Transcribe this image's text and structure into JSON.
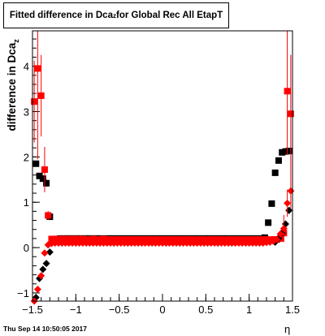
{
  "title": {
    "main": "Fitted difference in Dca",
    "sub": "z",
    "rest": " for Global Rec All EtapT"
  },
  "timestamp": "Thu Sep 14 10:50:05 2017",
  "chart_data": {
    "type": "scatter",
    "title": "Fitted difference in Dcaz for Global Rec All EtapT",
    "xlabel": "η",
    "ylabel": "difference in Dcaz",
    "xlim": [
      -1.5,
      1.5
    ],
    "ylim": [
      -1.18,
      4.78
    ],
    "xticks": [
      -1.5,
      -1,
      -0.5,
      0,
      0.5,
      1,
      1.5
    ],
    "xtick_labels": [
      "−1.5",
      "−1",
      "−0.5",
      "0",
      "0.5",
      "1",
      "1.5"
    ],
    "yticks": [
      -1,
      0,
      1,
      2,
      3,
      4
    ],
    "ytick_labels": [
      "−1",
      "0",
      "1",
      "2",
      "3",
      "4"
    ],
    "grid": false,
    "series": [
      {
        "marker": "square",
        "color": "#000000",
        "x": [
          -1.46,
          -1.42,
          -1.38,
          -1.34,
          -1.3,
          -1.26,
          -1.22,
          -1.18,
          -1.14,
          -1.1,
          -1.06,
          -1.02,
          -0.98,
          -0.94,
          -0.9,
          -0.86,
          -0.82,
          -0.78,
          -0.74,
          -0.7,
          -0.66,
          -0.62,
          -0.58,
          -0.54,
          -0.5,
          -0.46,
          -0.42,
          -0.38,
          -0.34,
          -0.3,
          -0.26,
          -0.22,
          -0.18,
          -0.14,
          -0.1,
          -0.06,
          -0.02,
          0.02,
          0.06,
          0.1,
          0.14,
          0.18,
          0.22,
          0.26,
          0.3,
          0.34,
          0.38,
          0.42,
          0.46,
          0.5,
          0.54,
          0.58,
          0.62,
          0.66,
          0.7,
          0.74,
          0.78,
          0.82,
          0.86,
          0.9,
          0.94,
          0.98,
          1.02,
          1.06,
          1.1,
          1.14,
          1.18,
          1.22,
          1.26,
          1.3,
          1.34,
          1.38,
          1.42,
          1.46
        ],
        "y": [
          1.85,
          1.58,
          1.52,
          1.42,
          0.68,
          0.18,
          0.19,
          0.2,
          0.2,
          0.2,
          0.2,
          0.2,
          0.2,
          0.2,
          0.2,
          0.2,
          0.2,
          0.2,
          0.2,
          0.2,
          0.2,
          0.2,
          0.2,
          0.2,
          0.2,
          0.2,
          0.2,
          0.2,
          0.2,
          0.2,
          0.2,
          0.2,
          0.2,
          0.2,
          0.2,
          0.2,
          0.2,
          0.2,
          0.2,
          0.2,
          0.2,
          0.2,
          0.2,
          0.2,
          0.2,
          0.2,
          0.2,
          0.2,
          0.2,
          0.2,
          0.2,
          0.2,
          0.2,
          0.2,
          0.2,
          0.2,
          0.2,
          0.2,
          0.2,
          0.2,
          0.2,
          0.2,
          0.2,
          0.2,
          0.2,
          0.2,
          0.22,
          0.55,
          0.97,
          1.65,
          1.92,
          2.1,
          2.12,
          2.13
        ],
        "yerr": [
          0.06,
          0.06,
          0.06,
          0.08,
          0.06,
          0.01,
          0.01,
          0.01,
          0.01,
          0.01,
          0.01,
          0.01,
          0.01,
          0.01,
          0.01,
          0.01,
          0.01,
          0.01,
          0.01,
          0.01,
          0.01,
          0.01,
          0.01,
          0.01,
          0.01,
          0.01,
          0.01,
          0.01,
          0.01,
          0.01,
          0.01,
          0.01,
          0.01,
          0.01,
          0.01,
          0.01,
          0.01,
          0.01,
          0.01,
          0.01,
          0.01,
          0.01,
          0.01,
          0.01,
          0.01,
          0.01,
          0.01,
          0.01,
          0.01,
          0.01,
          0.01,
          0.01,
          0.01,
          0.01,
          0.01,
          0.01,
          0.01,
          0.01,
          0.01,
          0.01,
          0.01,
          0.01,
          0.01,
          0.01,
          0.01,
          0.01,
          0.02,
          0.03,
          0.04,
          0.05,
          0.06,
          0.06,
          0.06,
          0.06
        ]
      },
      {
        "marker": "square",
        "color": "#ff0000",
        "x": [
          -1.48,
          -1.44,
          -1.4,
          -1.36,
          -1.32,
          -1.28,
          -1.24,
          -1.2,
          -1.16,
          -1.12,
          -1.08,
          -1.04,
          -1.0,
          -0.96,
          -0.92,
          -0.88,
          -0.84,
          -0.8,
          -0.76,
          -0.72,
          -0.68,
          -0.64,
          -0.6,
          -0.56,
          -0.52,
          -0.48,
          -0.44,
          -0.4,
          -0.36,
          -0.32,
          -0.28,
          -0.24,
          -0.2,
          -0.16,
          -0.12,
          -0.08,
          -0.04,
          0.0,
          0.04,
          0.08,
          0.12,
          0.16,
          0.2,
          0.24,
          0.28,
          0.32,
          0.36,
          0.4,
          0.44,
          0.48,
          0.52,
          0.56,
          0.6,
          0.64,
          0.68,
          0.72,
          0.76,
          0.8,
          0.84,
          0.88,
          0.92,
          0.96,
          1.0,
          1.04,
          1.08,
          1.12,
          1.16,
          1.2,
          1.24,
          1.28,
          1.32,
          1.36,
          1.4,
          1.44,
          1.48
        ],
        "y": [
          3.22,
          3.95,
          3.35,
          1.72,
          0.71,
          0.19,
          0.19,
          0.18,
          0.19,
          0.19,
          0.18,
          0.19,
          0.19,
          0.18,
          0.19,
          0.18,
          0.18,
          0.19,
          0.18,
          0.18,
          0.19,
          0.18,
          0.18,
          0.18,
          0.18,
          0.18,
          0.18,
          0.18,
          0.18,
          0.18,
          0.18,
          0.18,
          0.18,
          0.18,
          0.17,
          0.18,
          0.18,
          0.18,
          0.18,
          0.18,
          0.18,
          0.18,
          0.17,
          0.18,
          0.18,
          0.18,
          0.18,
          0.17,
          0.18,
          0.18,
          0.17,
          0.18,
          0.18,
          0.17,
          0.18,
          0.17,
          0.18,
          0.18,
          0.17,
          0.18,
          0.17,
          0.18,
          0.18,
          0.17,
          0.18,
          0.17,
          0.18,
          0.18,
          0.17,
          0.18,
          0.18,
          0.2,
          0.32,
          3.45,
          2.95
        ],
        "yerr": [
          0.9,
          2.0,
          0.9,
          0.5,
          0.1,
          0.01,
          0.01,
          0.01,
          0.01,
          0.01,
          0.01,
          0.01,
          0.01,
          0.01,
          0.01,
          0.01,
          0.01,
          0.01,
          0.01,
          0.01,
          0.01,
          0.01,
          0.01,
          0.01,
          0.01,
          0.01,
          0.01,
          0.01,
          0.01,
          0.01,
          0.01,
          0.01,
          0.01,
          0.01,
          0.01,
          0.01,
          0.01,
          0.01,
          0.01,
          0.01,
          0.01,
          0.01,
          0.01,
          0.01,
          0.01,
          0.01,
          0.01,
          0.01,
          0.01,
          0.01,
          0.01,
          0.01,
          0.01,
          0.01,
          0.01,
          0.01,
          0.01,
          0.01,
          0.01,
          0.01,
          0.01,
          0.01,
          0.01,
          0.01,
          0.01,
          0.01,
          0.01,
          0.01,
          0.01,
          0.01,
          0.01,
          0.01,
          0.05,
          1.4,
          1.3
        ]
      },
      {
        "marker": "diamond",
        "color": "#000000",
        "x": [
          -1.46,
          -1.42,
          -1.38,
          -1.34,
          -1.3,
          1.3,
          1.34,
          1.38,
          1.42,
          1.46
        ],
        "y": [
          -1.1,
          -0.68,
          -0.48,
          -0.35,
          -0.1,
          0.12,
          0.2,
          0.32,
          0.52,
          0.82
        ],
        "yerr": [
          0.08,
          0.06,
          0.04,
          0.03,
          0.02,
          0.02,
          0.03,
          0.04,
          0.06,
          0.08
        ]
      },
      {
        "marker": "diamond",
        "color": "#ff0000",
        "x": [
          -1.48,
          -1.44,
          -1.4,
          -1.36,
          -1.32,
          -1.28,
          -1.24,
          -1.2,
          -1.16,
          -1.12,
          -1.08,
          -1.04,
          -1.0,
          -0.96,
          -0.92,
          -0.88,
          -0.84,
          -0.8,
          -0.76,
          -0.72,
          -0.68,
          -0.64,
          -0.6,
          -0.56,
          -0.52,
          -0.48,
          -0.44,
          -0.4,
          -0.36,
          -0.32,
          -0.28,
          -0.24,
          -0.2,
          -0.16,
          -0.12,
          -0.08,
          -0.04,
          0.0,
          0.04,
          0.08,
          0.12,
          0.16,
          0.2,
          0.24,
          0.28,
          0.32,
          0.36,
          0.4,
          0.44,
          0.48,
          0.52,
          0.56,
          0.6,
          0.64,
          0.68,
          0.72,
          0.76,
          0.8,
          0.84,
          0.88,
          0.92,
          0.96,
          1.0,
          1.04,
          1.08,
          1.12,
          1.16,
          1.2,
          1.24,
          1.28,
          1.32,
          1.36,
          1.4,
          1.44,
          1.48
        ],
        "y": [
          -1.18,
          -0.92,
          -0.62,
          -0.12,
          0.06,
          0.09,
          0.1,
          0.1,
          0.1,
          0.1,
          0.1,
          0.1,
          0.1,
          0.1,
          0.1,
          0.1,
          0.1,
          0.1,
          0.1,
          0.1,
          0.1,
          0.1,
          0.1,
          0.1,
          0.1,
          0.1,
          0.1,
          0.1,
          0.1,
          0.1,
          0.1,
          0.1,
          0.1,
          0.1,
          0.1,
          0.1,
          0.1,
          0.1,
          0.1,
          0.1,
          0.1,
          0.1,
          0.1,
          0.1,
          0.1,
          0.1,
          0.1,
          0.1,
          0.1,
          0.1,
          0.1,
          0.1,
          0.1,
          0.1,
          0.1,
          0.1,
          0.1,
          0.1,
          0.1,
          0.1,
          0.1,
          0.1,
          0.1,
          0.1,
          0.1,
          0.1,
          0.1,
          0.11,
          0.12,
          0.14,
          0.18,
          0.3,
          0.42,
          0.98,
          1.25
        ],
        "yerr": [
          0.08,
          0.07,
          0.06,
          0.04,
          0.02,
          0.01,
          0.01,
          0.01,
          0.01,
          0.01,
          0.01,
          0.01,
          0.01,
          0.01,
          0.01,
          0.01,
          0.01,
          0.01,
          0.01,
          0.01,
          0.01,
          0.01,
          0.01,
          0.01,
          0.01,
          0.01,
          0.01,
          0.01,
          0.01,
          0.01,
          0.01,
          0.01,
          0.01,
          0.01,
          0.01,
          0.01,
          0.01,
          0.01,
          0.01,
          0.01,
          0.01,
          0.01,
          0.01,
          0.01,
          0.01,
          0.01,
          0.01,
          0.01,
          0.01,
          0.01,
          0.01,
          0.01,
          0.01,
          0.01,
          0.01,
          0.01,
          0.01,
          0.01,
          0.01,
          0.01,
          0.01,
          0.01,
          0.01,
          0.01,
          0.01,
          0.01,
          0.02,
          0.02,
          0.03,
          0.04,
          0.05,
          0.06,
          0.3,
          0.3,
          0.4
        ]
      }
    ]
  }
}
